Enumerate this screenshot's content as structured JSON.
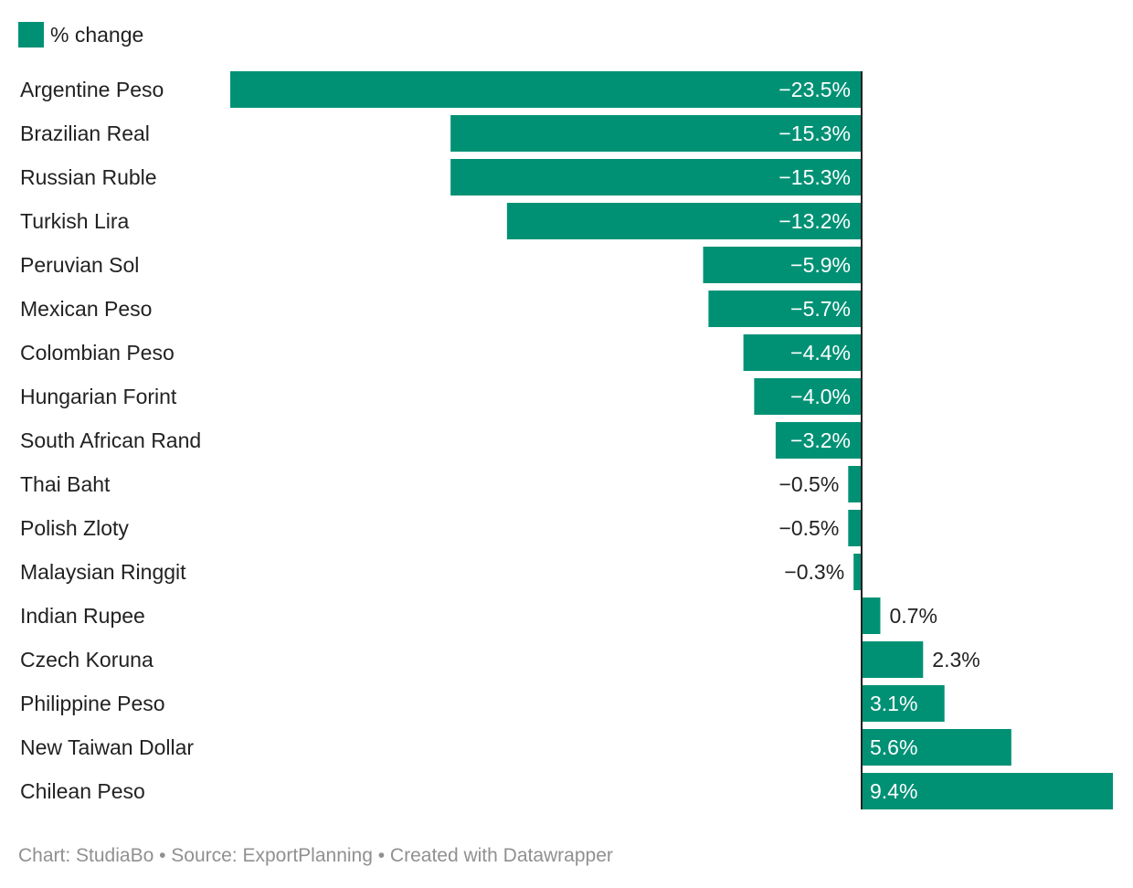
{
  "legend": {
    "label": "% change"
  },
  "colors": {
    "bar": "#009175",
    "label_inside": "#ffffff",
    "label_outside": "#222222",
    "axis": "#222222",
    "category": "#222222"
  },
  "chart_data": {
    "type": "bar",
    "orientation": "horizontal",
    "series": [
      {
        "name": "% change",
        "values": [
          -23.5,
          -15.3,
          -15.3,
          -13.2,
          -5.9,
          -5.7,
          -4.4,
          -4.0,
          -3.2,
          -0.5,
          -0.5,
          -0.3,
          0.7,
          2.3,
          3.1,
          5.6,
          9.4
        ]
      }
    ],
    "categories": [
      "Argentine Peso",
      "Brazilian Real",
      "Russian Ruble",
      "Turkish Lira",
      "Peruvian Sol",
      "Mexican Peso",
      "Colombian Peso",
      "Hungarian Forint",
      "South African Rand",
      "Thai Baht",
      "Polish Zloty",
      "Malaysian Ringgit",
      "Indian Rupee",
      "Czech Koruna",
      "Philippine Peso",
      "New Taiwan Dollar",
      "Chilean Peso"
    ],
    "value_labels": [
      "−23.5%",
      "−15.3%",
      "−15.3%",
      "−13.2%",
      "−5.9%",
      "−5.7%",
      "−4.4%",
      "−4.0%",
      "−3.2%",
      "−0.5%",
      "−0.5%",
      "−0.3%",
      "0.7%",
      "2.3%",
      "3.1%",
      "5.6%",
      "9.4%"
    ],
    "xlim": [
      -23.5,
      9.4
    ],
    "grid": false,
    "legend_position": "top-left"
  },
  "footer": {
    "credit": "Chart: StudiaBo • Source: ExportPlanning • Created with Datawrapper"
  }
}
